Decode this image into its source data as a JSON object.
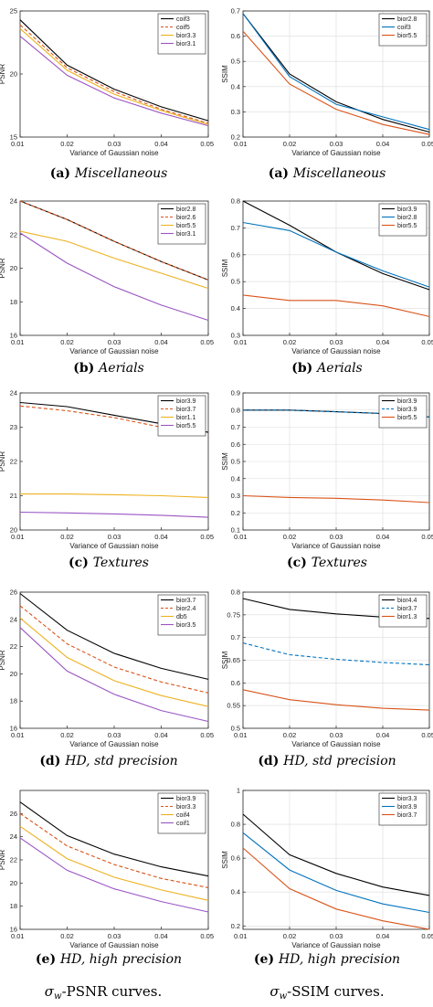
{
  "columns": [
    {
      "name": "psnr",
      "caption_math": "σ",
      "caption_sub": "w",
      "caption_rest": "-PSNR curves."
    },
    {
      "name": "ssim",
      "caption_math": "σ",
      "caption_sub": "w",
      "caption_rest": "-SSIM curves."
    }
  ],
  "chart_data": [
    {
      "type": "line",
      "column": 0,
      "row": 0,
      "caption_label": "(a)",
      "caption_name": "Miscellaneous",
      "xlabel": "Variance of Gaussian noise",
      "ylabel": "PSNR",
      "x": [
        0.01,
        0.02,
        0.03,
        0.04,
        0.05
      ],
      "xticks": [
        "0.01",
        "0.02",
        "0.03",
        "0.04",
        "0.05"
      ],
      "ylim": [
        15,
        25
      ],
      "yticks": [
        15,
        20,
        25
      ],
      "grid": false,
      "legend": "top-right",
      "series": [
        {
          "name": "coif3",
          "color": "#000000",
          "dash": "solid",
          "values": [
            24.3,
            20.7,
            18.8,
            17.4,
            16.3
          ]
        },
        {
          "name": "coif5",
          "color": "#D95319",
          "dash": "dashed",
          "values": [
            23.9,
            20.5,
            18.6,
            17.2,
            16.1
          ]
        },
        {
          "name": "bior3.3",
          "color": "#EDB120",
          "dash": "solid",
          "values": [
            23.6,
            20.3,
            18.4,
            17.1,
            16.0
          ]
        },
        {
          "name": "bior3.1",
          "color": "#9A55C4",
          "dash": "solid",
          "values": [
            23.0,
            19.9,
            18.1,
            16.9,
            15.9
          ]
        }
      ]
    },
    {
      "type": "line",
      "column": 1,
      "row": 0,
      "caption_label": "(a)",
      "caption_name": "Miscellaneous",
      "xlabel": "Variance of Gaussian noise",
      "ylabel": "SSIM",
      "x": [
        0.01,
        0.02,
        0.03,
        0.04,
        0.05
      ],
      "xticks": [
        "0.01",
        "0.02",
        "0.03",
        "0.04",
        "0.05"
      ],
      "ylim": [
        0.2,
        0.7
      ],
      "yticks": [
        "0.2",
        "0.3",
        "0.4",
        "0.5",
        "0.6",
        "0.7"
      ],
      "grid": true,
      "legend": "top-right",
      "series": [
        {
          "name": "bior2.8",
          "color": "#000000",
          "dash": "solid",
          "values": [
            0.69,
            0.45,
            0.34,
            0.27,
            0.22
          ]
        },
        {
          "name": "coif3",
          "color": "#0072BD",
          "dash": "solid",
          "values": [
            0.69,
            0.44,
            0.33,
            0.28,
            0.23
          ]
        },
        {
          "name": "bior5.5",
          "color": "#D95319",
          "dash": "solid",
          "values": [
            0.62,
            0.41,
            0.31,
            0.25,
            0.21
          ]
        }
      ]
    },
    {
      "type": "line",
      "column": 0,
      "row": 1,
      "caption_label": "(b)",
      "caption_name": "Aerials",
      "xlabel": "Variance of Gaussian noise",
      "ylabel": "PSNR",
      "x": [
        0.01,
        0.02,
        0.03,
        0.04,
        0.05
      ],
      "xticks": [
        "0.01",
        "0.02",
        "0.03",
        "0.04",
        "0.05"
      ],
      "ylim": [
        16,
        24
      ],
      "yticks": [
        "16",
        "18",
        "20",
        "22",
        "24"
      ],
      "grid": false,
      "legend": "top-right",
      "series": [
        {
          "name": "bior2.8",
          "color": "#000000",
          "dash": "solid",
          "values": [
            24.0,
            22.9,
            21.6,
            20.4,
            19.3
          ]
        },
        {
          "name": "bior2.6",
          "color": "#D95319",
          "dash": "dashed",
          "values": [
            24.0,
            22.9,
            21.6,
            20.4,
            19.3
          ]
        },
        {
          "name": "bior5.5",
          "color": "#EDB120",
          "dash": "solid",
          "values": [
            22.2,
            21.6,
            20.6,
            19.7,
            18.8
          ]
        },
        {
          "name": "bior3.1",
          "color": "#9A55C4",
          "dash": "solid",
          "values": [
            22.1,
            20.3,
            18.9,
            17.8,
            16.9
          ]
        }
      ]
    },
    {
      "type": "line",
      "column": 1,
      "row": 1,
      "caption_label": "(b)",
      "caption_name": "Aerials",
      "xlabel": "Variance of Gaussian noise",
      "ylabel": "SSIM",
      "x": [
        0.01,
        0.02,
        0.03,
        0.04,
        0.05
      ],
      "xticks": [
        "0.01",
        "0.02",
        "0.03",
        "0.04",
        "0.05"
      ],
      "ylim": [
        0.3,
        0.8
      ],
      "yticks": [
        "0.3",
        "0.4",
        "0.5",
        "0.6",
        "0.7",
        "0.8"
      ],
      "grid": true,
      "legend": "top-right",
      "series": [
        {
          "name": "bior3.9",
          "color": "#000000",
          "dash": "solid",
          "values": [
            0.8,
            0.71,
            0.61,
            0.53,
            0.47
          ]
        },
        {
          "name": "bior2.8",
          "color": "#0072BD",
          "dash": "solid",
          "values": [
            0.72,
            0.69,
            0.61,
            0.54,
            0.48
          ]
        },
        {
          "name": "bior5.5",
          "color": "#D95319",
          "dash": "solid",
          "values": [
            0.45,
            0.43,
            0.43,
            0.41,
            0.37
          ]
        }
      ]
    },
    {
      "type": "line",
      "column": 0,
      "row": 2,
      "caption_label": "(c)",
      "caption_name": "Textures",
      "xlabel": "Variance of Gaussian noise",
      "ylabel": "PSNR",
      "x": [
        0.01,
        0.02,
        0.03,
        0.04,
        0.05
      ],
      "xticks": [
        "0.01",
        "0.02",
        "0.03",
        "0.04",
        "0.05"
      ],
      "ylim": [
        20,
        24
      ],
      "yticks": [
        "20",
        "21",
        "22",
        "23",
        "24"
      ],
      "grid": false,
      "legend": "top-right",
      "series": [
        {
          "name": "bior3.9",
          "color": "#000000",
          "dash": "solid",
          "values": [
            23.72,
            23.6,
            23.35,
            23.1,
            22.85
          ]
        },
        {
          "name": "bior3.7",
          "color": "#D95319",
          "dash": "dashed",
          "values": [
            23.62,
            23.48,
            23.28,
            23.0,
            22.75
          ]
        },
        {
          "name": "bior1.1",
          "color": "#EDB120",
          "dash": "solid",
          "values": [
            21.05,
            21.05,
            21.03,
            21.0,
            20.95
          ]
        },
        {
          "name": "bior5.5",
          "color": "#9A55C4",
          "dash": "solid",
          "values": [
            20.52,
            20.5,
            20.47,
            20.43,
            20.37
          ]
        }
      ]
    },
    {
      "type": "line",
      "column": 1,
      "row": 2,
      "caption_label": "(c)",
      "caption_name": "Textures",
      "xlabel": "Variance of Gaussian noise",
      "ylabel": "SSIM",
      "x": [
        0.01,
        0.02,
        0.03,
        0.04,
        0.05
      ],
      "xticks": [
        "0.01",
        "0.02",
        "0.03",
        "0.04",
        "0.05"
      ],
      "ylim": [
        0.1,
        0.9
      ],
      "yticks": [
        "0.1",
        "0.2",
        "0.3",
        "0.4",
        "0.5",
        "0.6",
        "0.7",
        "0.8",
        "0.9"
      ],
      "grid": true,
      "legend": "top-right",
      "series": [
        {
          "name": "bior3.9",
          "color": "#000000",
          "dash": "solid",
          "values": [
            0.8,
            0.8,
            0.79,
            0.78,
            0.76
          ]
        },
        {
          "name": "bior3.9",
          "color": "#0072BD",
          "dash": "dashed",
          "values": [
            0.8,
            0.8,
            0.79,
            0.78,
            0.76
          ]
        },
        {
          "name": "bior5.5",
          "color": "#D95319",
          "dash": "solid",
          "values": [
            0.3,
            0.29,
            0.285,
            0.275,
            0.26
          ]
        }
      ]
    },
    {
      "type": "line",
      "column": 0,
      "row": 3,
      "caption_label": "(d)",
      "caption_name": "HD, std precision",
      "xlabel": "Variance of Gaussian noise",
      "ylabel": "PSNR",
      "x": [
        0.01,
        0.02,
        0.03,
        0.04,
        0.05
      ],
      "xticks": [
        "0.01",
        "0.02",
        "0.03",
        "0.04",
        "0.05"
      ],
      "ylim": [
        16,
        26
      ],
      "yticks": [
        "16",
        "18",
        "20",
        "22",
        "24",
        "26"
      ],
      "grid": false,
      "legend": "top-right",
      "series": [
        {
          "name": "bior3.7",
          "color": "#000000",
          "dash": "solid",
          "values": [
            25.9,
            23.2,
            21.5,
            20.4,
            19.6
          ]
        },
        {
          "name": "bior2.4",
          "color": "#D95319",
          "dash": "dashed",
          "values": [
            25.0,
            22.2,
            20.5,
            19.4,
            18.6
          ]
        },
        {
          "name": "db5",
          "color": "#EDB120",
          "dash": "solid",
          "values": [
            24.1,
            21.2,
            19.5,
            18.4,
            17.6
          ]
        },
        {
          "name": "bior3.5",
          "color": "#9A55C4",
          "dash": "solid",
          "values": [
            23.4,
            20.2,
            18.5,
            17.3,
            16.5
          ]
        }
      ]
    },
    {
      "type": "line",
      "column": 1,
      "row": 3,
      "caption_label": "(d)",
      "caption_name": "HD, std precision",
      "xlabel": "Variance of Gaussian noise",
      "ylabel": "SSIM",
      "x": [
        0.01,
        0.02,
        0.03,
        0.04,
        0.05
      ],
      "xticks": [
        "0.01",
        "0.02",
        "0.03",
        "0.04",
        "0.05"
      ],
      "ylim": [
        0.5,
        0.8
      ],
      "yticks": [
        "0.5",
        "0.55",
        "0.6",
        "0.65",
        "0.7",
        "0.75",
        "0.8"
      ],
      "grid": true,
      "legend": "top-right",
      "series": [
        {
          "name": "bior4.4",
          "color": "#000000",
          "dash": "solid",
          "values": [
            0.786,
            0.762,
            0.752,
            0.745,
            0.742
          ]
        },
        {
          "name": "bior3.7",
          "color": "#0072BD",
          "dash": "dashed",
          "values": [
            0.688,
            0.662,
            0.652,
            0.645,
            0.64
          ]
        },
        {
          "name": "bior1.3",
          "color": "#D95319",
          "dash": "solid",
          "values": [
            0.585,
            0.563,
            0.552,
            0.544,
            0.54
          ]
        }
      ]
    },
    {
      "type": "line",
      "column": 0,
      "row": 4,
      "caption_label": "(e)",
      "caption_name": "HD, high precision",
      "xlabel": "Variance of Gaussian noise",
      "ylabel": "PSNR",
      "x": [
        0.01,
        0.02,
        0.03,
        0.04,
        0.05
      ],
      "xticks": [
        "0.01",
        "0.02",
        "0.03",
        "0.04",
        "0.05"
      ],
      "ylim": [
        16,
        28
      ],
      "yticks": [
        "16",
        "18",
        "20",
        "22",
        "24",
        "26"
      ],
      "grid": false,
      "legend": "top-right",
      "series": [
        {
          "name": "bior3.9",
          "color": "#000000",
          "dash": "solid",
          "values": [
            27.0,
            24.1,
            22.5,
            21.4,
            20.6
          ]
        },
        {
          "name": "bior3.3",
          "color": "#D95319",
          "dash": "dashed",
          "values": [
            26.0,
            23.2,
            21.6,
            20.4,
            19.6
          ]
        },
        {
          "name": "coif4",
          "color": "#EDB120",
          "dash": "solid",
          "values": [
            24.9,
            22.1,
            20.5,
            19.4,
            18.5
          ]
        },
        {
          "name": "coif1",
          "color": "#9A55C4",
          "dash": "solid",
          "values": [
            23.9,
            21.1,
            19.5,
            18.4,
            17.5
          ]
        }
      ]
    },
    {
      "type": "line",
      "column": 1,
      "row": 4,
      "caption_label": "(e)",
      "caption_name": "HD, high precision",
      "xlabel": "Variance of Gaussian noise",
      "ylabel": "SSIM",
      "x": [
        0.01,
        0.02,
        0.03,
        0.04,
        0.05
      ],
      "xticks": [
        "0.01",
        "0.02",
        "0.03",
        "0.04",
        "0.05"
      ],
      "ylim": [
        0.18,
        1.0
      ],
      "yticks": [
        "0.2",
        "0.4",
        "0.6",
        "0.8",
        "1"
      ],
      "grid": true,
      "legend": "top-right",
      "series": [
        {
          "name": "bior3.3",
          "color": "#000000",
          "dash": "solid",
          "values": [
            0.86,
            0.62,
            0.51,
            0.43,
            0.38
          ]
        },
        {
          "name": "bior3.9",
          "color": "#0072BD",
          "dash": "solid",
          "values": [
            0.75,
            0.53,
            0.41,
            0.33,
            0.28
          ]
        },
        {
          "name": "bior3.7",
          "color": "#D95319",
          "dash": "solid",
          "values": [
            0.66,
            0.42,
            0.3,
            0.23,
            0.18
          ]
        }
      ]
    }
  ]
}
